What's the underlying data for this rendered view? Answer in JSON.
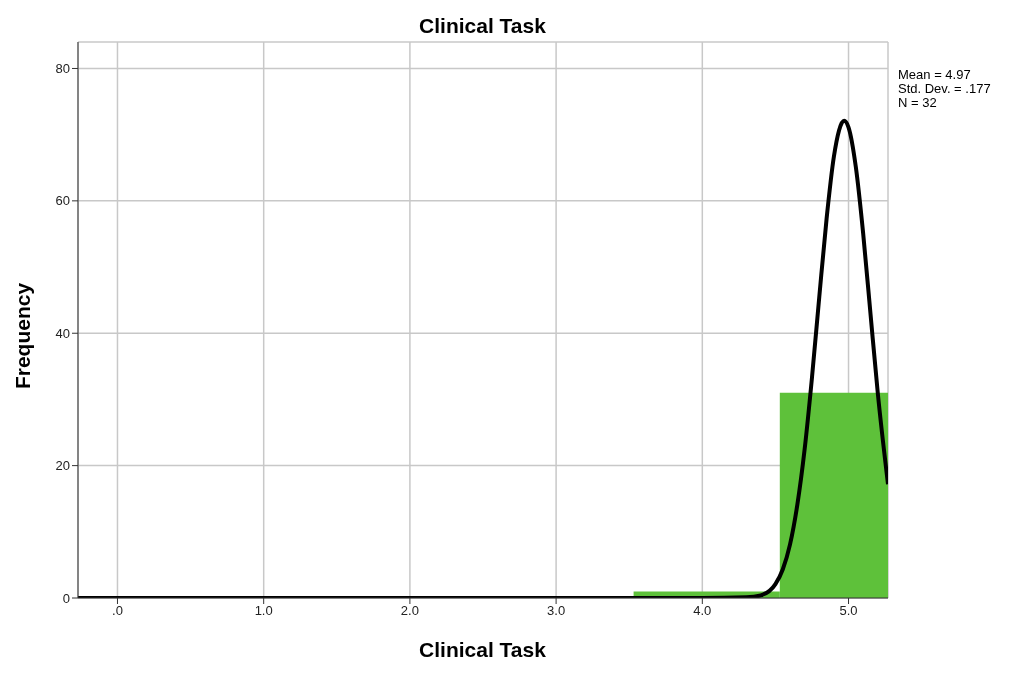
{
  "chart_data": {
    "type": "histogram",
    "title": "Clinical Task",
    "xlabel": "Clinical Task",
    "ylabel": "Frequency",
    "bins": [
      3.53,
      4.53,
      5.27
    ],
    "values": [
      1,
      31
    ],
    "color": "#5ec13a",
    "series": [
      {
        "type": "line",
        "color": "#000000",
        "x": [
          -0.27,
          4.0,
          4.3,
          4.4,
          4.5,
          4.55,
          4.6,
          4.65,
          4.7,
          4.75,
          4.8,
          4.85,
          4.9,
          4.97,
          5.0,
          5.05,
          5.1,
          5.15,
          5.2,
          5.27
        ],
        "values": [
          0,
          0,
          0.1,
          0.4,
          2.1,
          4.3,
          8.1,
          14.1,
          22.5,
          33.3,
          45.5,
          57.3,
          66.7,
          72.1,
          71.1,
          65.1,
          55.1,
          43.0,
          31.0,
          17.2
        ]
      }
    ],
    "marker": "none",
    "line_style": "solid",
    "xlim": [
      -0.27,
      5.27
    ],
    "xticks": [
      {
        "value": 0,
        "label": ".0"
      },
      {
        "value": 1,
        "label": "1.0"
      },
      {
        "value": 2,
        "label": "2.0"
      },
      {
        "value": 3,
        "label": "3.0"
      },
      {
        "value": 4,
        "label": "4.0"
      },
      {
        "value": 5,
        "label": "5.0"
      }
    ],
    "ylim": [
      0,
      84
    ],
    "yticks": [
      0,
      20,
      40,
      60,
      80
    ],
    "grid": true,
    "annotations": [
      "Mean = 4.97",
      "Std. Dev. = .177",
      "N = 32"
    ]
  }
}
